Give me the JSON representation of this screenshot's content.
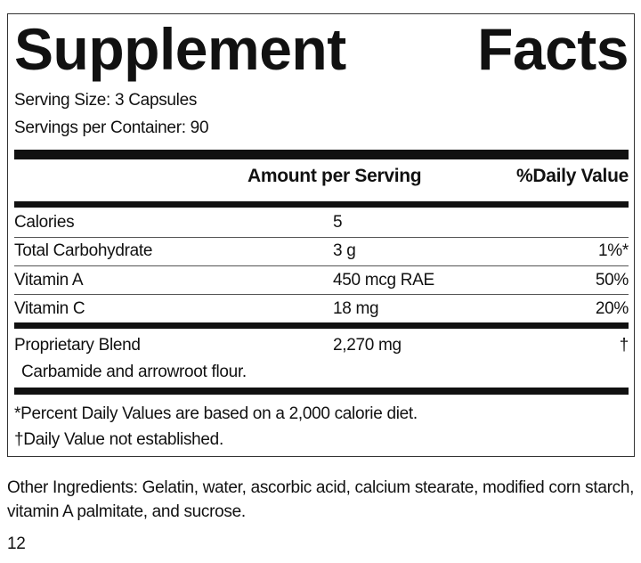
{
  "label": {
    "title": "Supplement Facts",
    "serving_size": "Serving Size: 3 Capsules",
    "servings_per_container": "Servings per Container: 90",
    "header": {
      "amount": "Amount per Serving",
      "daily_value": "%Daily Value"
    },
    "rows": [
      {
        "name": "Calories",
        "amount": "5"
      },
      {
        "name": "Total Carbohydrate",
        "amount": "3 g",
        "daily_value": "1%*"
      },
      {
        "name": "Vitamin A",
        "amount": "450 mcg RAE",
        "daily_value": "50%"
      },
      {
        "name": "Vitamin C",
        "amount": "18 mg",
        "daily_value": "20%"
      }
    ],
    "blend": {
      "name": "Proprietary Blend",
      "amount": "2,270 mg",
      "daily_value": "†",
      "description": "Carbamide and arrowroot flour."
    },
    "footnotes": [
      "*Percent Daily Values are based on a 2,000 calorie diet.",
      "†Daily Value not established."
    ]
  },
  "other_ingredients": "Other Ingredients: Gelatin, water, ascorbic acid, calcium stearate, modified corn starch, vitamin A palmitate, and sucrose.",
  "page_number": "12"
}
